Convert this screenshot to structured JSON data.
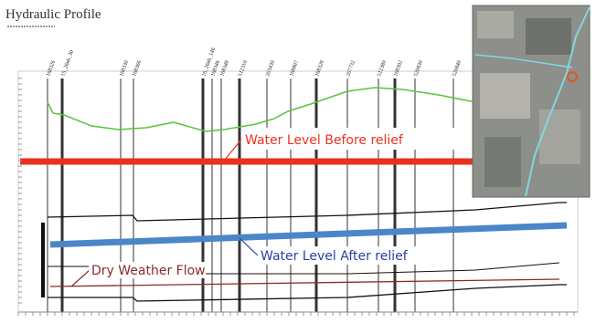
{
  "header": {
    "title": "Hydraulic Profile"
  },
  "nodes": [
    {
      "label": "168326"
    },
    {
      "label": "15_26nb_30"
    },
    {
      "label": "168330"
    },
    {
      "label": "168366"
    },
    {
      "label": "16_26nb_146"
    },
    {
      "label": "168346"
    },
    {
      "label": "168348"
    },
    {
      "label": "512310"
    },
    {
      "label": "203430"
    },
    {
      "label": "168807"
    },
    {
      "label": "168328"
    },
    {
      "label": "207732"
    },
    {
      "label": "512380"
    },
    {
      "label": "168392"
    },
    {
      "label": "520830"
    },
    {
      "label": "520840"
    }
  ],
  "annotations": {
    "before": "Water Level Before relief",
    "after": "Water Level After relief",
    "dry": "Dry Weather Flow"
  }
}
